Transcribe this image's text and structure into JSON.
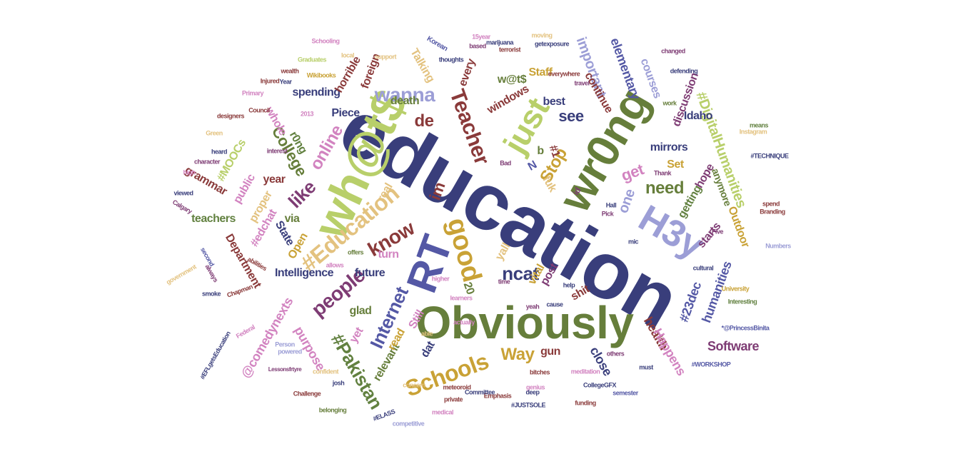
{
  "colors": {
    "navy": "#393e7b",
    "olive": "#667e3b",
    "lime": "#b8cf6a",
    "ochre": "#c9a236",
    "maroon": "#8a3a3a",
    "purple": "#7e3c74",
    "lavender": "#9c9ed6",
    "pink": "#d283c0",
    "khaki": "#e3c27f",
    "slate": "#5458a5",
    "rose": "#d8a1a0",
    "green": "#628140"
  },
  "words": [
    {
      "text": "education",
      "color": "navy"
    },
    {
      "text": "Obviously",
      "color": "olive"
    },
    {
      "text": "wh@t$",
      "color": "lime"
    },
    {
      "text": "wr0ng",
      "color": "olive"
    },
    {
      "text": "RT",
      "color": "slate"
    },
    {
      "text": "H3y",
      "color": "lavender"
    },
    {
      "text": "just",
      "color": "lime"
    },
    {
      "text": "good",
      "color": "ochre"
    },
    {
      "text": "Schools",
      "color": "ochre"
    },
    {
      "text": "#Education",
      "color": "khaki"
    },
    {
      "text": "Teacher",
      "color": "maroon"
    },
    {
      "text": "know",
      "color": "maroon"
    },
    {
      "text": "people",
      "color": "purple"
    },
    {
      "text": "Internet",
      "color": "slate"
    },
    {
      "text": "#Pakistan",
      "color": "green"
    },
    {
      "text": "ncat",
      "color": "navy"
    },
    {
      "text": "Way",
      "color": "ochre"
    },
    {
      "text": "wanna",
      "color": "lavender"
    },
    {
      "text": "like",
      "color": "purple"
    },
    {
      "text": "de",
      "color": "maroon"
    },
    {
      "text": "see",
      "color": "navy"
    },
    {
      "text": "Stop",
      "color": "ochre"
    },
    {
      "text": "need",
      "color": "olive"
    },
    {
      "text": "get",
      "color": "pink"
    },
    {
      "text": "online",
      "color": "pink"
    },
    {
      "text": "College",
      "color": "olive"
    },
    {
      "text": "one",
      "color": "lavender"
    },
    {
      "text": "im",
      "color": "maroon"
    },
    {
      "text": "important",
      "color": "lavender"
    },
    {
      "text": "elementary",
      "color": "slate"
    },
    {
      "text": "#DigitalHumanities",
      "color": "lime"
    },
    {
      "text": "humanities",
      "color": "slate"
    },
    {
      "text": "#23dec",
      "color": "slate"
    },
    {
      "text": "health",
      "color": "maroon"
    },
    {
      "text": "Happens",
      "color": "pink"
    },
    {
      "text": "Software",
      "color": "purple"
    },
    {
      "text": "close",
      "color": "navy"
    },
    {
      "text": "gun",
      "color": "maroon"
    },
    {
      "text": "Intelligence",
      "color": "navy"
    },
    {
      "text": "Department",
      "color": "maroon"
    },
    {
      "text": "purpose",
      "color": "pink"
    },
    {
      "text": "@comedynexts",
      "color": "pink"
    },
    {
      "text": "teachers",
      "color": "green"
    },
    {
      "text": "grammar",
      "color": "maroon"
    },
    {
      "text": "public",
      "color": "pink"
    },
    {
      "text": "#MOOCs",
      "color": "lime"
    },
    {
      "text": "whole",
      "color": "pink"
    },
    {
      "text": "r0ng",
      "color": "green"
    },
    {
      "text": "spending",
      "color": "navy"
    },
    {
      "text": "horrible",
      "color": "maroon"
    },
    {
      "text": "death",
      "color": "olive"
    },
    {
      "text": "Talking",
      "color": "khaki"
    },
    {
      "text": "foreign",
      "color": "maroon"
    },
    {
      "text": "every",
      "color": "maroon"
    },
    {
      "text": "w@t$",
      "color": "olive"
    },
    {
      "text": "Staff",
      "color": "ochre"
    },
    {
      "text": "windows",
      "color": "maroon"
    },
    {
      "text": "best",
      "color": "navy"
    },
    {
      "text": "continue",
      "color": "maroon"
    },
    {
      "text": "courses",
      "color": "lavender"
    },
    {
      "text": "discussion",
      "color": "purple"
    },
    {
      "text": "Idaho",
      "color": "navy"
    },
    {
      "text": "mirrors",
      "color": "navy"
    },
    {
      "text": "anymore",
      "color": "olive"
    },
    {
      "text": "hope",
      "color": "purple"
    },
    {
      "text": "getting",
      "color": "green"
    },
    {
      "text": "Outdoor",
      "color": "ochre"
    },
    {
      "text": "starts",
      "color": "purple"
    },
    {
      "text": "post",
      "color": "purple"
    },
    {
      "text": "vital",
      "color": "ochre"
    },
    {
      "text": "shit",
      "color": "maroon"
    },
    {
      "text": "future",
      "color": "navy"
    },
    {
      "text": "glad",
      "color": "olive"
    },
    {
      "text": "yet",
      "color": "pink"
    },
    {
      "text": "relevant",
      "color": "olive"
    },
    {
      "text": "read",
      "color": "ochre"
    },
    {
      "text": "Still",
      "color": "pink"
    },
    {
      "text": "dat",
      "color": "navy"
    },
    {
      "text": "State",
      "color": "navy"
    },
    {
      "text": "proper",
      "color": "khaki"
    },
    {
      "text": "Piece",
      "color": "navy"
    },
    {
      "text": "#edchat",
      "color": "pink"
    },
    {
      "text": "year",
      "color": "maroon"
    },
    {
      "text": "via",
      "color": "olive"
    },
    {
      "text": "Open",
      "color": "ochre"
    },
    {
      "text": "real",
      "color": "khaki"
    },
    {
      "text": "turn",
      "color": "pink"
    },
    {
      "text": "yall",
      "color": "khaki"
    },
    {
      "text": "20",
      "color": "olive"
    },
    {
      "text": "Set",
      "color": "ochre"
    },
    {
      "text": "fuk",
      "color": "khaki"
    },
    {
      "text": "b",
      "color": "olive"
    },
    {
      "text": "#1",
      "color": "maroon"
    },
    {
      "text": "N",
      "color": "slate"
    },
    {
      "text": "id",
      "color": "purple"
    },
    {
      "text": "Schooling",
      "color": "pink"
    },
    {
      "text": "Korean",
      "color": "slate"
    },
    {
      "text": "15year",
      "color": "pink"
    },
    {
      "text": "#WORKSHOP",
      "color": "slate"
    },
    {
      "text": "#JUSTSOLE",
      "color": "navy"
    },
    {
      "text": "#TECHNIQUE",
      "color": "navy"
    },
    {
      "text": "*@PrincessBinita",
      "color": "slate"
    },
    {
      "text": "Challenge",
      "color": "maroon"
    },
    {
      "text": "Lessonsfrtyre",
      "color": "purple"
    },
    {
      "text": "#EFLgetsEducation",
      "color": "navy"
    },
    {
      "text": "Person",
      "color": "lavender"
    },
    {
      "text": "powered",
      "color": "lavender"
    },
    {
      "text": "competitive",
      "color": "lavender"
    },
    {
      "text": "#ELASS",
      "color": "navy"
    },
    {
      "text": "Calgary",
      "color": "purple"
    },
    {
      "text": "government",
      "color": "khaki"
    },
    {
      "text": "designers",
      "color": "maroon"
    },
    {
      "text": "Council",
      "color": "maroon"
    },
    {
      "text": "Primary",
      "color": "pink"
    },
    {
      "text": "heard",
      "color": "navy"
    },
    {
      "text": "character",
      "color": "purple"
    },
    {
      "text": "high",
      "color": "pink"
    },
    {
      "text": "viewed",
      "color": "navy"
    },
    {
      "text": "Green",
      "color": "khaki"
    },
    {
      "text": "Federal",
      "color": "pink"
    },
    {
      "text": "Chapman",
      "color": "maroon"
    },
    {
      "text": "always",
      "color": "purple"
    },
    {
      "text": "smoke",
      "color": "navy"
    },
    {
      "text": "second",
      "color": "slate"
    },
    {
      "text": "abilities",
      "color": "maroon"
    },
    {
      "text": "Thank",
      "color": "purple"
    },
    {
      "text": "Pick",
      "color": "purple"
    },
    {
      "text": "Hall",
      "color": "navy"
    },
    {
      "text": "Five",
      "color": "purple"
    },
    {
      "text": "University",
      "color": "ochre"
    },
    {
      "text": "Interesting",
      "color": "green"
    },
    {
      "text": "actually",
      "color": "pink"
    },
    {
      "text": "learners",
      "color": "pink"
    },
    {
      "text": "able",
      "color": "khaki"
    },
    {
      "text": "cause",
      "color": "navy"
    },
    {
      "text": "help",
      "color": "navy"
    },
    {
      "text": "time",
      "color": "purple"
    },
    {
      "text": "yeah",
      "color": "purple"
    },
    {
      "text": "higher",
      "color": "pink"
    },
    {
      "text": "allows",
      "color": "pink"
    },
    {
      "text": "offers",
      "color": "olive"
    },
    {
      "text": "Bad",
      "color": "purple"
    },
    {
      "text": "based",
      "color": "purple"
    },
    {
      "text": "getexposure",
      "color": "navy"
    },
    {
      "text": "moving",
      "color": "khaki"
    },
    {
      "text": "terrorist",
      "color": "maroon"
    },
    {
      "text": "changed",
      "color": "purple"
    },
    {
      "text": "means",
      "color": "green"
    },
    {
      "text": "work",
      "color": "olive"
    },
    {
      "text": "Instagram",
      "color": "khaki"
    },
    {
      "text": "spend",
      "color": "maroon"
    },
    {
      "text": "Branding",
      "color": "maroon"
    },
    {
      "text": "Numbers",
      "color": "lavender"
    },
    {
      "text": "mic",
      "color": "navy"
    },
    {
      "text": "semester",
      "color": "slate"
    },
    {
      "text": "meditation",
      "color": "pink"
    },
    {
      "text": "genius",
      "color": "pink"
    },
    {
      "text": "bitches",
      "color": "maroon"
    },
    {
      "text": "deep",
      "color": "navy"
    },
    {
      "text": "funding",
      "color": "maroon"
    },
    {
      "text": "CollegeGFX",
      "color": "navy"
    },
    {
      "text": "must",
      "color": "navy"
    },
    {
      "text": "others",
      "color": "purple"
    },
    {
      "text": "medical",
      "color": "pink"
    },
    {
      "text": "private",
      "color": "maroon"
    },
    {
      "text": "Emphasis",
      "color": "maroon"
    },
    {
      "text": "Committee",
      "color": "navy"
    },
    {
      "text": "meteoroid",
      "color": "maroon"
    },
    {
      "text": "josh",
      "color": "navy"
    },
    {
      "text": "concern",
      "color": "khaki"
    },
    {
      "text": "confident",
      "color": "khaki"
    },
    {
      "text": "belonging",
      "color": "olive"
    },
    {
      "text": "2013",
      "color": "pink"
    },
    {
      "text": "wealth",
      "color": "maroon"
    },
    {
      "text": "Injured",
      "color": "maroon"
    },
    {
      "text": "Year",
      "color": "navy"
    },
    {
      "text": "Wikibooks",
      "color": "ochre"
    },
    {
      "text": "Graduates",
      "color": "lime"
    },
    {
      "text": "local",
      "color": "khaki"
    },
    {
      "text": "support",
      "color": "khaki"
    },
    {
      "text": "marijuana",
      "color": "navy"
    },
    {
      "text": "thoughts",
      "color": "navy"
    },
    {
      "text": "everywhere",
      "color": "maroon"
    },
    {
      "text": "travel",
      "color": "purple"
    },
    {
      "text": "defending",
      "color": "navy"
    },
    {
      "text": "interest",
      "color": "purple"
    },
    {
      "text": "cultural",
      "color": "navy"
    }
  ]
}
